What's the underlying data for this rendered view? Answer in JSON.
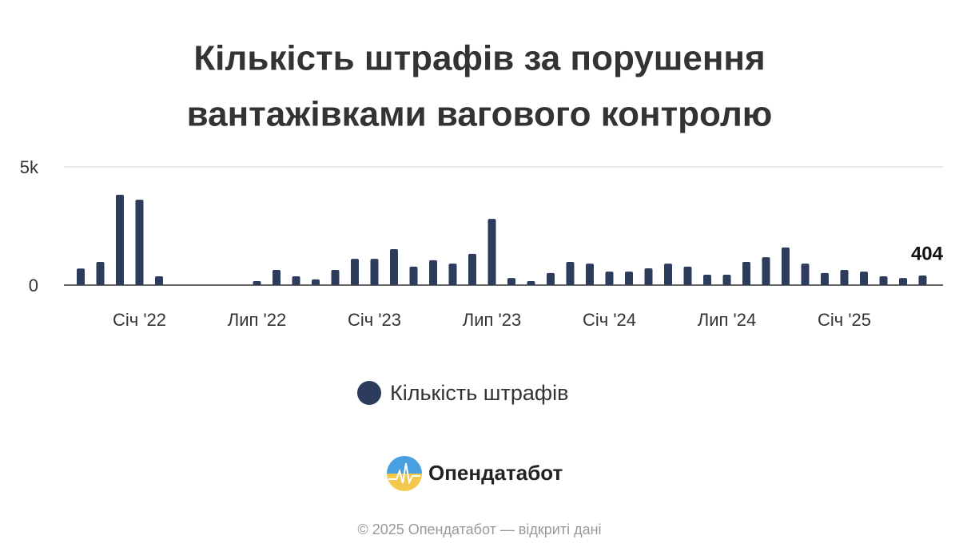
{
  "chart_data": {
    "type": "bar",
    "title": [
      "Кількість штрафів за порушення",
      "вантажівками вагового контролю"
    ],
    "categories": [
      null,
      null,
      null,
      "Січ '22",
      null,
      null,
      null,
      null,
      null,
      "Лип '22",
      null,
      null,
      null,
      null,
      null,
      "Січ '23",
      null,
      null,
      null,
      null,
      null,
      "Лип '23",
      null,
      null,
      null,
      null,
      null,
      "Січ '24",
      null,
      null,
      null,
      null,
      null,
      "Лип '24",
      null,
      null,
      null,
      null,
      null,
      "Січ '25",
      null,
      null,
      null,
      null
    ],
    "series": [
      {
        "name": "Кількість штрафів",
        "color": "#2d3b5c",
        "values": [
          700,
          980,
          3820,
          3610,
          370,
          null,
          null,
          null,
          null,
          170,
          640,
          370,
          240,
          640,
          1110,
          1110,
          1520,
          780,
          1050,
          910,
          1320,
          2800,
          300,
          170,
          510,
          980,
          910,
          570,
          570,
          710,
          910,
          780,
          440,
          440,
          980,
          1180,
          1590,
          910,
          510,
          640,
          570,
          370,
          300,
          404
        ]
      }
    ],
    "ylim": [
      0,
      5000
    ],
    "yticks": [
      0,
      {
        "value": 5000,
        "label": "5k"
      }
    ],
    "grid": true
  },
  "brand": "Опендатабот",
  "footer": "© 2025 Опендатабот — відкриті дані"
}
